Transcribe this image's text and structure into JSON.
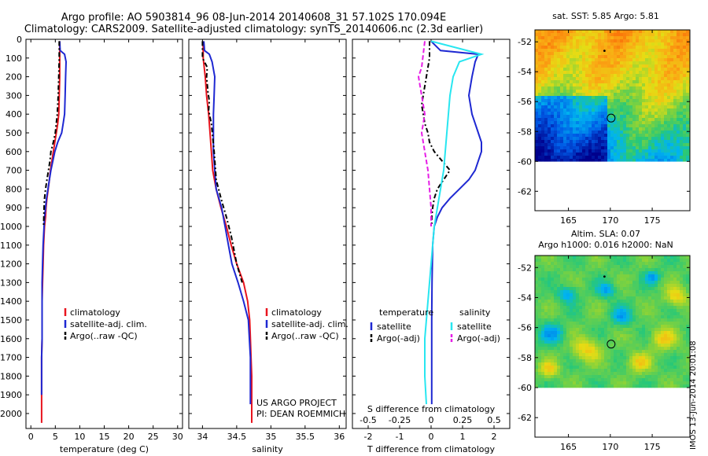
{
  "header": {
    "title_line1": "Argo profile: AO 5903814_96 08-Jun-2014 20140608_31 57.102S 170.094E",
    "title_line2": "Climatology: CARS2009. Satellite-adjusted climatology: synTS_20140606.nc (2.3d earlier)"
  },
  "colors": {
    "climatology": "#e8141e",
    "satellite": "#1e28d2",
    "argo": "#000000",
    "satellite_diff": "#28e6f0",
    "argo_diff": "#e61ee6"
  },
  "chart_data": [
    {
      "type": "line",
      "xlabel": "temperature (deg C)",
      "ylabel": "",
      "xlim": [
        -1,
        31
      ],
      "ylim": [
        2080,
        0
      ],
      "xticks": [
        "0",
        "5",
        "10",
        "15",
        "20",
        "25",
        "30"
      ],
      "yticks": [
        "0",
        "100",
        "200",
        "300",
        "400",
        "500",
        "600",
        "700",
        "800",
        "900",
        "1000",
        "1100",
        "1200",
        "1300",
        "1400",
        "1500",
        "1600",
        "1700",
        "1800",
        "1900",
        "2000"
      ],
      "legend": {
        "position": "bottom-right",
        "entries": [
          "climatology",
          "satellite-adj. clim.",
          "Argo(..raw -QC)"
        ]
      },
      "series": [
        {
          "name": "climatology",
          "style": "solid",
          "color": "#e8141e",
          "x": [
            5.9,
            5.9,
            5.9,
            5.8,
            5.7,
            5.5,
            5.2,
            4.9,
            4.6,
            4.3,
            4.0,
            3.8,
            3.55,
            3.3,
            3.1,
            3.0,
            2.8,
            2.7,
            2.6,
            2.5,
            2.4,
            2.3,
            2.3,
            2.3,
            2.2,
            2.2,
            2.2,
            2.2
          ],
          "y": [
            10,
            100,
            200,
            300,
            400,
            450,
            500,
            550,
            600,
            650,
            700,
            750,
            800,
            850,
            900,
            950,
            1000,
            1050,
            1100,
            1200,
            1300,
            1400,
            1500,
            1600,
            1700,
            1800,
            1900,
            2050
          ]
        },
        {
          "name": "satellite-adj. clim.",
          "style": "solid",
          "color": "#1e28d2",
          "x": [
            5.9,
            6.0,
            6.9,
            7.2,
            7.1,
            7.0,
            6.9,
            6.6,
            6.3,
            5.5,
            4.9,
            4.5,
            4.1,
            3.8,
            3.5,
            3.2,
            3.0,
            2.8,
            2.7,
            2.5,
            2.4,
            2.3,
            2.3,
            2.3,
            2.3,
            2.2,
            2.2,
            2.2
          ],
          "y": [
            10,
            60,
            80,
            120,
            200,
            300,
            400,
            450,
            500,
            550,
            600,
            650,
            700,
            750,
            800,
            850,
            900,
            950,
            1000,
            1100,
            1200,
            1300,
            1400,
            1500,
            1600,
            1700,
            1800,
            1900
          ]
        },
        {
          "name": "Argo(..raw -QC)",
          "style": "dashdot",
          "color": "#000000",
          "x": [
            5.8,
            5.8,
            5.7,
            5.6,
            5.4,
            5.0,
            4.6,
            4.1,
            3.9,
            3.6,
            3.3,
            3.0,
            2.8,
            2.7,
            2.6
          ],
          "y": [
            10,
            100,
            200,
            300,
            400,
            500,
            550,
            600,
            650,
            700,
            750,
            800,
            850,
            900,
            1000
          ]
        }
      ]
    },
    {
      "type": "line",
      "xlabel": "salinity",
      "ylabel": "",
      "xlim": [
        33.8,
        36.1
      ],
      "ylim": [
        2080,
        0
      ],
      "xticks": [
        "34",
        "34.5",
        "35",
        "35.5",
        "36"
      ],
      "legend": {
        "position": "bottom-right",
        "entries": [
          "climatology",
          "satellite-adj. clim.",
          "Argo(..raw -QC)"
        ]
      },
      "series": [
        {
          "name": "climatology",
          "style": "solid",
          "color": "#e8141e",
          "x": [
            34.01,
            34.01,
            34.04,
            34.06,
            34.09,
            34.11,
            34.13,
            34.15,
            34.2,
            34.27,
            34.35,
            34.42,
            34.5,
            34.6,
            34.66,
            34.69,
            34.7,
            34.71,
            34.72,
            34.72
          ],
          "y": [
            10,
            100,
            200,
            300,
            400,
            500,
            600,
            700,
            800,
            900,
            1000,
            1100,
            1200,
            1300,
            1400,
            1500,
            1600,
            1700,
            1800,
            2050
          ]
        },
        {
          "name": "satellite-adj. clim.",
          "style": "solid",
          "color": "#1e28d2",
          "x": [
            34.02,
            34.03,
            34.1,
            34.14,
            34.18,
            34.17,
            34.16,
            34.16,
            34.16,
            34.18,
            34.2,
            34.28,
            34.33,
            34.38,
            34.43,
            34.52,
            34.6,
            34.67,
            34.7,
            34.7
          ],
          "y": [
            10,
            60,
            80,
            120,
            200,
            300,
            400,
            500,
            600,
            700,
            800,
            900,
            1000,
            1100,
            1200,
            1300,
            1400,
            1500,
            1700,
            1950
          ]
        },
        {
          "name": "Argo(..raw -QC)",
          "style": "dashdot",
          "color": "#000000",
          "x": [
            34.0,
            34.0,
            34.07,
            34.06,
            34.08,
            34.1,
            34.09,
            34.13,
            34.17,
            34.2,
            34.27,
            34.35,
            34.42,
            34.5,
            34.58
          ],
          "y": [
            10,
            100,
            150,
            200,
            280,
            330,
            380,
            450,
            600,
            750,
            850,
            950,
            1050,
            1200,
            1300
          ]
        }
      ]
    },
    {
      "type": "line",
      "xlabel": "T difference from climatology",
      "ylabel": "",
      "xlim": [
        -2.5,
        2.5
      ],
      "ylim": [
        2080,
        0
      ],
      "xticks": [
        "-2",
        "-1",
        "0",
        "1",
        "2"
      ],
      "x2label": "S difference from climatology",
      "x2ticks": [
        "-0.5",
        "-0.25",
        "0",
        "0.25",
        "0.5"
      ],
      "legend": {
        "position": "bottom",
        "temperature_label": "temperature",
        "salinity_label": "salinity",
        "temperature_entries": [
          "satellite",
          "Argo(-adj)"
        ],
        "salinity_entries": [
          "satellite",
          "Argo(-adj)"
        ]
      },
      "series": [
        {
          "name": "satellite",
          "style": "solid",
          "color": "#1e28d2",
          "x": [
            0,
            0.3,
            1.5,
            1.4,
            1.3,
            1.2,
            1.3,
            1.4,
            1.5,
            1.6,
            1.6,
            1.5,
            1.4,
            1.2,
            0.9,
            0.6,
            0.35,
            0.2,
            0.1,
            0.05,
            0.03,
            0.02,
            0.02,
            0.02
          ],
          "y": [
            10,
            60,
            80,
            120,
            200,
            300,
            400,
            450,
            500,
            550,
            600,
            650,
            700,
            750,
            800,
            850,
            900,
            950,
            1000,
            1100,
            1300,
            1500,
            1800,
            1950
          ]
        },
        {
          "name": "Argo(-adj)",
          "style": "dashdot",
          "color": "#000000",
          "x": [
            -0.05,
            -0.05,
            -0.1,
            -0.15,
            -0.2,
            -0.25,
            -0.3,
            -0.25,
            -0.2,
            -0.1,
            -0.05,
            0.1,
            0.6,
            0.4,
            0.2,
            0.1,
            0.05,
            0.02,
            0.02
          ],
          "y": [
            10,
            100,
            150,
            200,
            250,
            300,
            350,
            400,
            450,
            500,
            550,
            600,
            700,
            750,
            800,
            850,
            900,
            950,
            1000
          ]
        },
        {
          "name": "satellite",
          "style": "solid",
          "color": "#28e6f0",
          "x": [
            0,
            1.6,
            0.9,
            0.7,
            0.6,
            0.55,
            0.5,
            0.45,
            0.4,
            0.3,
            0.2,
            0.1,
            0.05,
            0,
            -0.05,
            -0.1,
            -0.15,
            -0.2,
            -0.2,
            -0.15
          ],
          "y": [
            10,
            80,
            120,
            200,
            300,
            400,
            500,
            600,
            700,
            800,
            900,
            1000,
            1100,
            1200,
            1300,
            1400,
            1500,
            1600,
            1800,
            1950
          ]
        },
        {
          "name": "Argo(-adj)",
          "style": "dashed",
          "color": "#e61ee6",
          "x": [
            -0.2,
            -0.25,
            -0.3,
            -0.4,
            -0.35,
            -0.3,
            -0.25,
            -0.2,
            -0.25,
            -0.3,
            -0.25,
            -0.2,
            -0.1,
            -0.05,
            0.0,
            0.0
          ],
          "y": [
            10,
            80,
            150,
            200,
            250,
            300,
            350,
            400,
            450,
            500,
            550,
            600,
            700,
            800,
            900,
            1000
          ]
        }
      ]
    },
    {
      "type": "heatmap",
      "title": "sat. SST: 5.85 Argo: 5.81",
      "xlim": [
        161,
        179.5
      ],
      "ylim": [
        -63.3,
        -51.2
      ],
      "xticks": [
        "165",
        "170",
        "175"
      ],
      "yticks": [
        "-52",
        "-54",
        "-56",
        "-58",
        "-60",
        "-62"
      ],
      "data_lat_range": [
        -60,
        -51.2
      ],
      "argo_position": {
        "lon": 170.094,
        "lat": -57.102
      },
      "previous_position": {
        "lon": 169.3,
        "lat": -52.6
      }
    },
    {
      "type": "heatmap",
      "title_line1": "Altim. SLA: 0.07",
      "title_line2": "Argo h1000: 0.016 h2000: NaN",
      "xlim": [
        161,
        179.5
      ],
      "ylim": [
        -63.3,
        -51.2
      ],
      "xticks": [
        "165",
        "170",
        "175"
      ],
      "yticks": [
        "-52",
        "-54",
        "-56",
        "-58",
        "-60",
        "-62"
      ],
      "data_lat_range": [
        -60,
        -51.2
      ],
      "argo_position": {
        "lon": 170.094,
        "lat": -57.102
      },
      "previous_position": {
        "lon": 169.3,
        "lat": -52.6
      }
    }
  ],
  "annotations": {
    "project_line1": "US ARGO PROJECT",
    "project_line2": "PI: DEAN ROEMMICH",
    "stamp": "IMOS 13-Jun-2014 20:01:08"
  }
}
